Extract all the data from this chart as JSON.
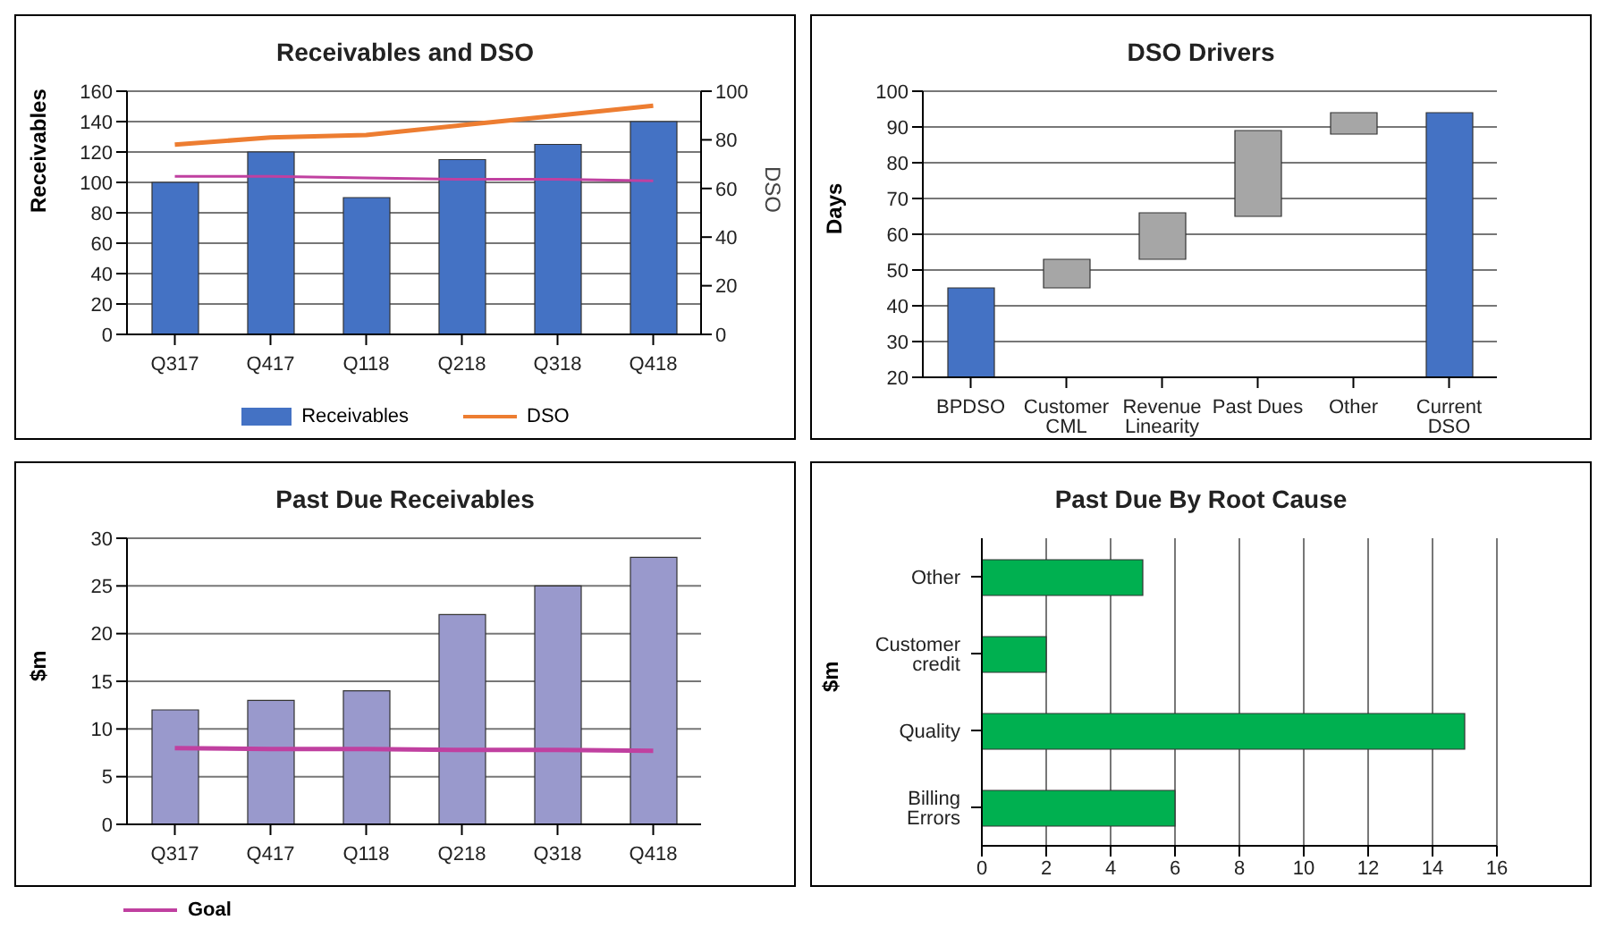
{
  "chart_data": [
    {
      "type": "bar",
      "title": "Receivables and DSO",
      "categories": [
        "Q317",
        "Q417",
        "Q118",
        "Q218",
        "Q318",
        "Q418"
      ],
      "series": [
        {
          "name": "Receivables",
          "color": "#4472c4",
          "values": [
            100,
            120,
            90,
            115,
            125,
            140
          ]
        },
        {
          "name": "DSO",
          "type": "line",
          "axis": "y2",
          "color": "#ed7d31",
          "values": [
            78,
            81,
            82,
            86,
            90,
            94
          ]
        },
        {
          "type": "line",
          "color": "#c040a0",
          "values": [
            104,
            104,
            103,
            102,
            102,
            101
          ]
        }
      ],
      "ylabel": "Receivables",
      "y2label": "DSO",
      "ylim": [
        0,
        160
      ],
      "yticks": [
        0,
        20,
        40,
        60,
        80,
        100,
        120,
        140,
        160
      ],
      "y2lim": [
        0,
        100
      ],
      "y2ticks": [
        0,
        20,
        40,
        60,
        80,
        100
      ],
      "grid": "y",
      "legend": "bottom"
    },
    {
      "type": "bar",
      "title": "DSO Drivers",
      "categories": [
        "BPDSO",
        "Customer CML",
        "Revenue Linearity",
        "Past Dues",
        "Other",
        "Current DSO"
      ],
      "values": [
        45,
        8,
        13,
        24,
        6,
        94
      ],
      "base": [
        null,
        45,
        53,
        65,
        88,
        null
      ],
      "colors": [
        "#4472c4",
        "#a6a6a6",
        "#a6a6a6",
        "#a6a6a6",
        "#a6a6a6",
        "#4472c4"
      ],
      "ylabel": "Days",
      "ylim": [
        20,
        100
      ],
      "yticks": [
        20,
        30,
        40,
        50,
        60,
        70,
        80,
        90,
        100
      ],
      "grid": "y"
    },
    {
      "type": "bar",
      "title": "Past Due Receivables",
      "categories": [
        "Q317",
        "Q417",
        "Q118",
        "Q218",
        "Q318",
        "Q418"
      ],
      "series": [
        {
          "color": "#9999cc",
          "values": [
            12,
            13,
            14,
            22,
            25,
            28
          ]
        },
        {
          "name": "Goal",
          "type": "line",
          "color": "#c040a0",
          "values": [
            8,
            7.9,
            7.9,
            7.8,
            7.8,
            7.7
          ]
        }
      ],
      "ylabel": "$m",
      "ylim": [
        0,
        30
      ],
      "yticks": [
        0,
        5,
        10,
        15,
        20,
        25,
        30
      ],
      "grid": "y",
      "legend": "bottom left"
    },
    {
      "type": "bar",
      "orientation": "horizontal",
      "title": "Past Due By Root Cause",
      "categories": [
        "Other",
        "Customer credit",
        "Quality",
        "Billing Errors"
      ],
      "values": [
        5,
        2,
        15,
        6
      ],
      "color": "#00b050",
      "ylabel": "$m",
      "xlim": [
        0,
        16
      ],
      "xticks": [
        0,
        2,
        4,
        6,
        8,
        10,
        12,
        14,
        16
      ],
      "grid": "x"
    }
  ]
}
